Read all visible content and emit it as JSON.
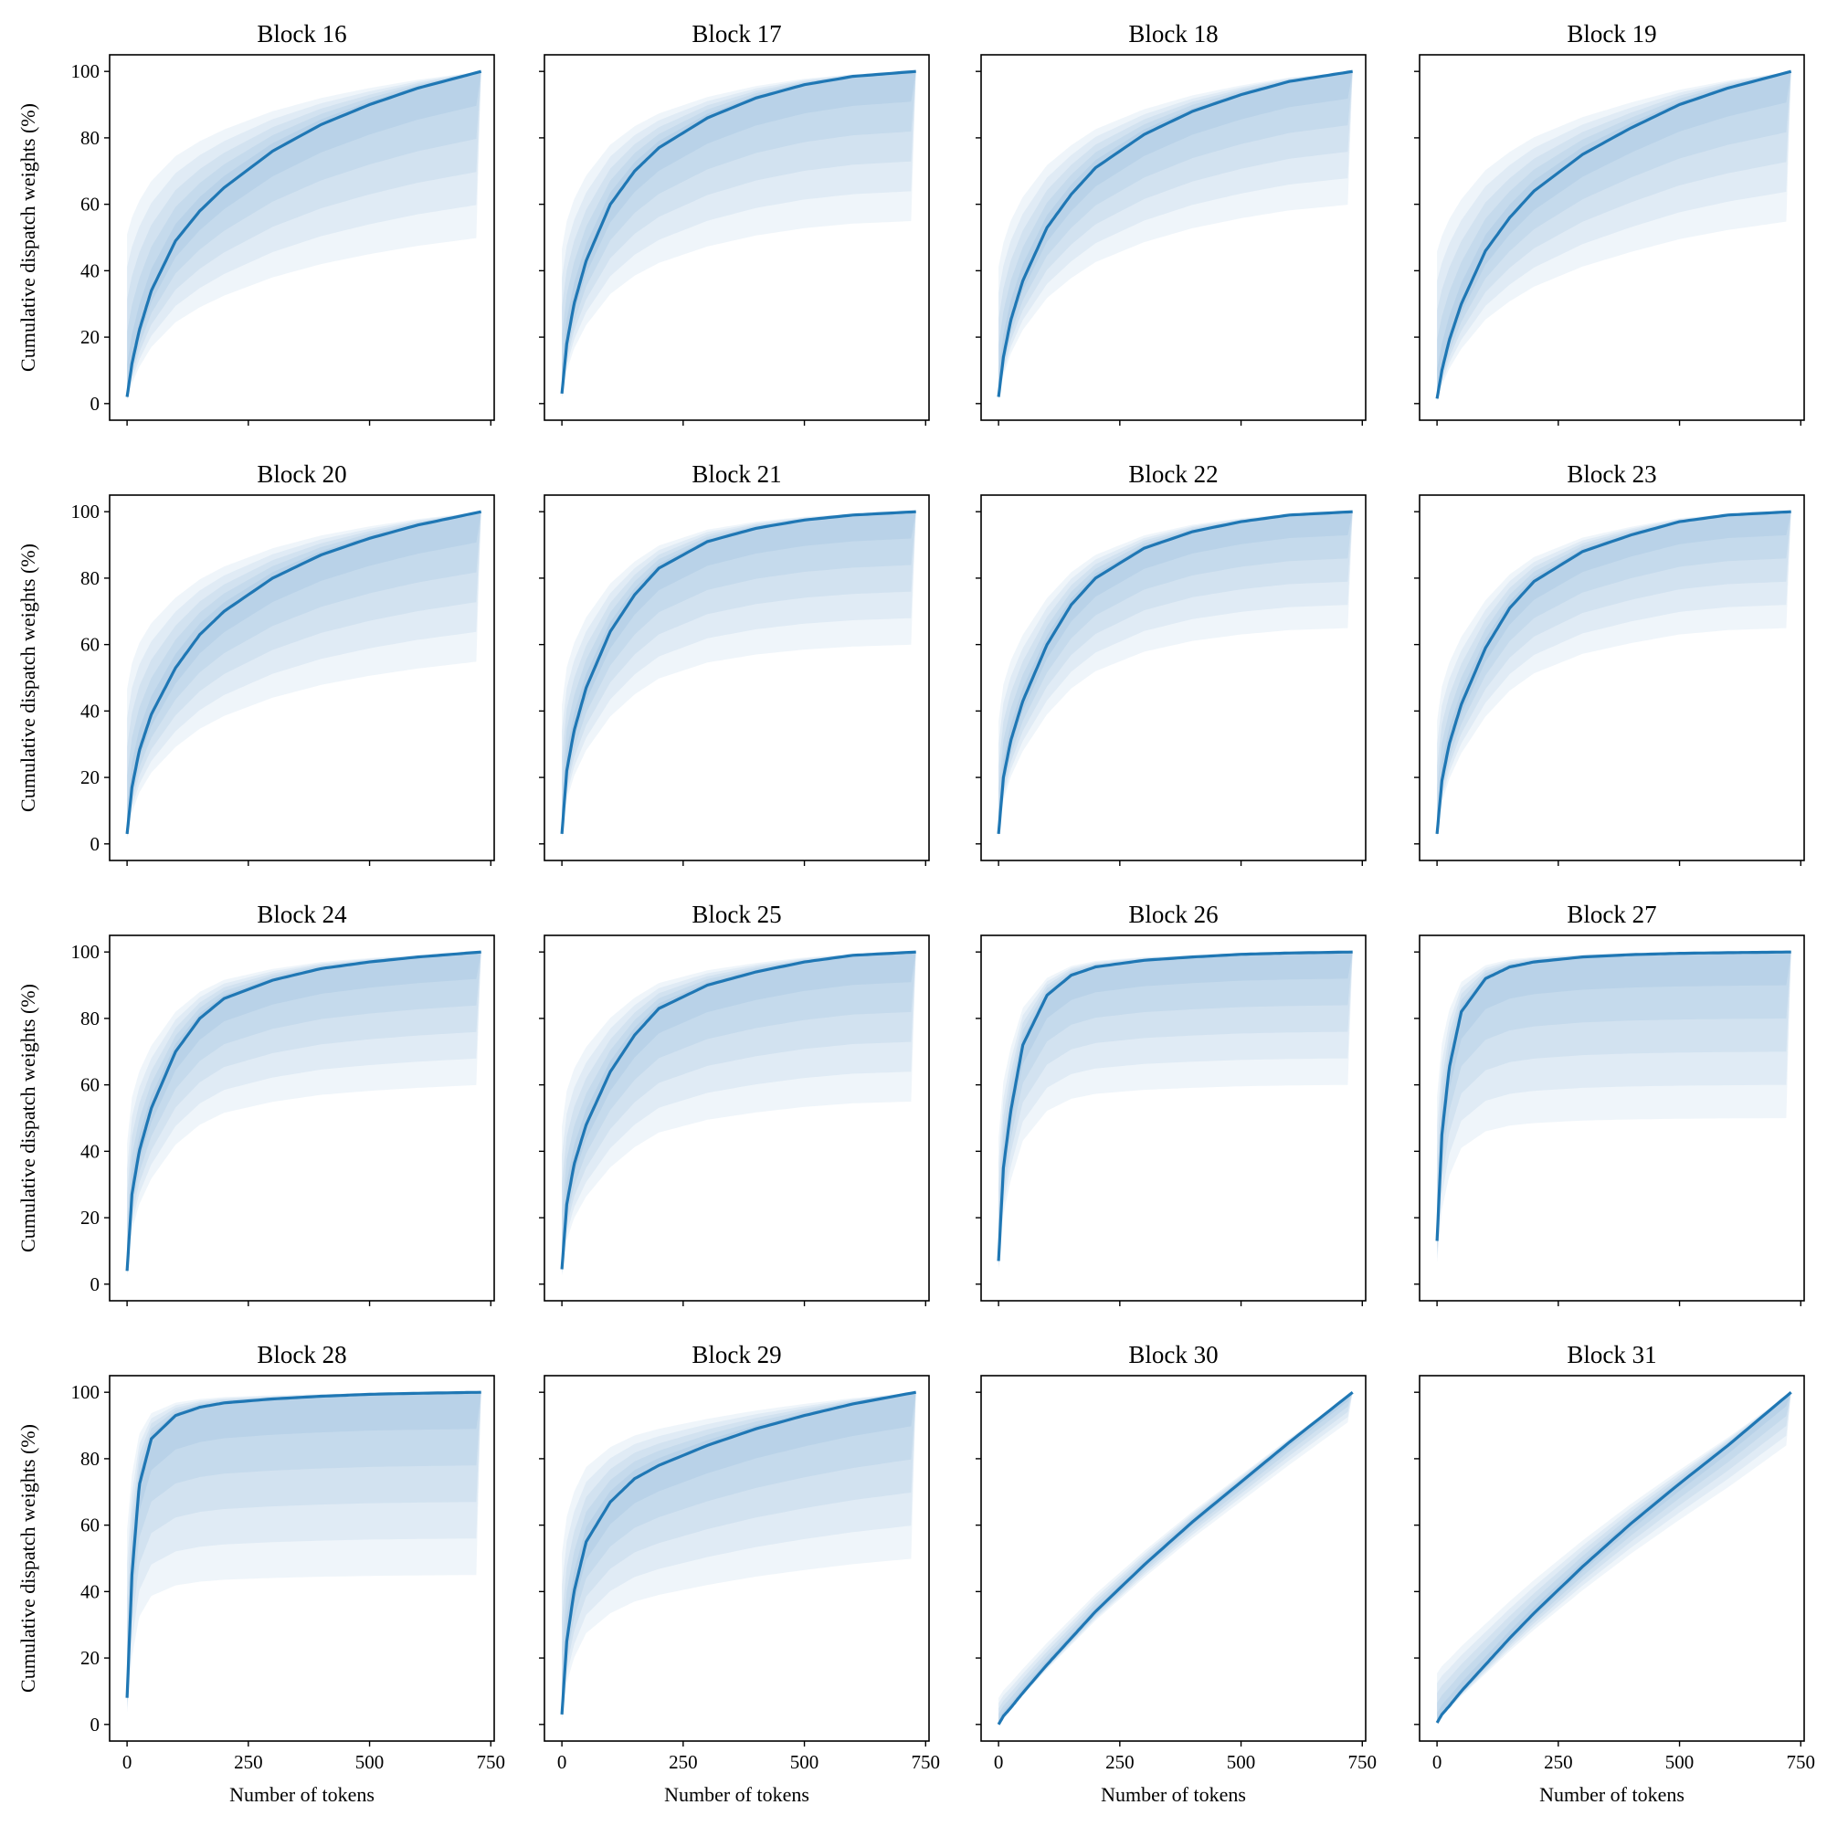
{
  "chart_data": {
    "type": "line",
    "layout": "4x4 grid of subplots",
    "xlabel": "Number of tokens",
    "ylabel": "Cumulative dispatch weights (%)",
    "xlim": [
      -36,
      757
    ],
    "ylim": [
      -5,
      105
    ],
    "xticks": [
      0,
      250,
      500,
      750
    ],
    "yticks": [
      0,
      20,
      40,
      60,
      80,
      100
    ],
    "x": [
      0,
      10,
      25,
      50,
      100,
      150,
      200,
      300,
      400,
      500,
      600,
      730
    ],
    "line_color": "#1f77b4",
    "band_color": "#1f77b4",
    "panels": [
      {
        "title": "Block 16",
        "median": [
          2,
          12,
          22,
          34,
          49,
          58,
          65,
          76,
          84,
          90,
          95,
          100
        ],
        "band_spread": 0.5
      },
      {
        "title": "Block 17",
        "median": [
          3,
          18,
          30,
          43,
          60,
          70,
          77,
          86,
          92,
          96,
          98.5,
          100
        ],
        "band_spread": 0.45
      },
      {
        "title": "Block 18",
        "median": [
          2,
          14,
          25,
          37,
          53,
          63,
          71,
          81,
          88,
          93,
          97,
          100
        ],
        "band_spread": 0.4
      },
      {
        "title": "Block 19",
        "median": [
          1.5,
          10,
          19,
          30,
          46,
          56,
          64,
          75,
          83,
          90,
          95,
          100
        ],
        "band_spread": 0.45
      },
      {
        "title": "Block 20",
        "median": [
          3,
          17,
          28,
          39,
          53,
          63,
          70,
          80,
          87,
          92,
          96,
          100
        ],
        "band_spread": 0.45
      },
      {
        "title": "Block 21",
        "median": [
          3,
          22,
          34,
          47,
          64,
          75,
          83,
          91,
          95,
          97.5,
          99,
          100
        ],
        "band_spread": 0.4
      },
      {
        "title": "Block 22",
        "median": [
          3,
          20,
          31,
          43,
          60,
          72,
          80,
          89,
          94,
          97,
          99,
          100
        ],
        "band_spread": 0.35
      },
      {
        "title": "Block 23",
        "median": [
          3,
          19,
          30,
          42,
          59,
          71,
          79,
          88,
          93,
          97,
          99,
          100
        ],
        "band_spread": 0.35
      },
      {
        "title": "Block 24",
        "median": [
          4,
          27,
          40,
          53,
          70,
          80,
          86,
          91.5,
          95,
          97,
          98.5,
          100
        ],
        "band_spread": 0.4
      },
      {
        "title": "Block 25",
        "median": [
          4.5,
          24,
          36,
          48,
          64,
          75,
          83,
          90,
          94,
          97,
          99,
          100
        ],
        "band_spread": 0.45
      },
      {
        "title": "Block 26",
        "median": [
          7,
          35,
          52,
          72,
          87,
          93,
          95.5,
          97.5,
          98.5,
          99.3,
          99.7,
          100
        ],
        "band_spread": 0.4
      },
      {
        "title": "Block 27",
        "median": [
          13,
          45,
          65,
          82,
          92,
          95.5,
          97,
          98.5,
          99.2,
          99.6,
          99.8,
          100
        ],
        "band_spread": 0.5
      },
      {
        "title": "Block 28",
        "median": [
          8,
          45,
          72,
          86,
          93,
          95.5,
          96.8,
          98,
          98.8,
          99.4,
          99.7,
          100
        ],
        "band_spread": 0.55
      },
      {
        "title": "Block 29",
        "median": [
          3,
          25,
          40,
          55,
          67,
          74,
          78,
          84,
          89,
          93,
          96.5,
          100
        ],
        "band_spread": 0.5
      },
      {
        "title": "Block 30",
        "median": [
          0,
          2.5,
          5,
          9.5,
          18,
          26,
          34,
          48,
          61,
          73,
          85,
          100
        ],
        "band_spread": 0.08
      },
      {
        "title": "Block 31",
        "median": [
          0.5,
          3,
          5.5,
          10,
          18,
          26,
          33.5,
          47.5,
          60.5,
          72.5,
          84,
          100
        ],
        "band_spread": 0.15
      }
    ]
  }
}
